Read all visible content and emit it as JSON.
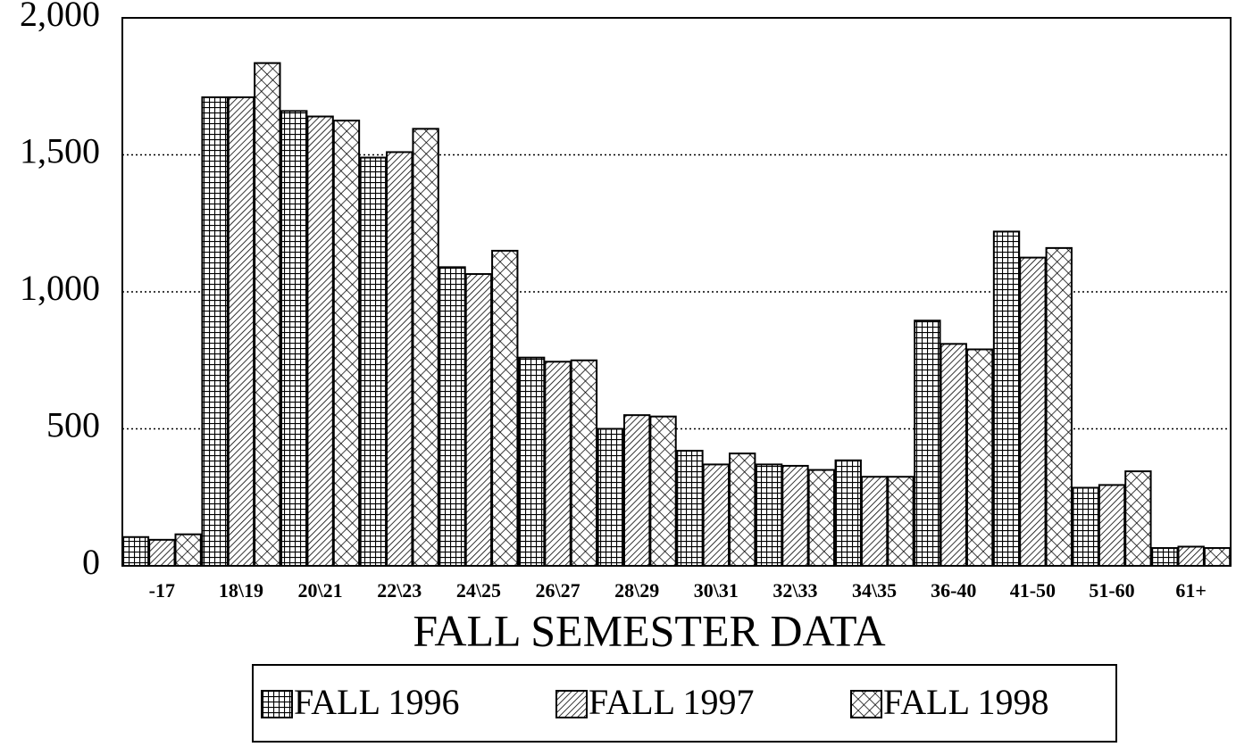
{
  "chart_data": {
    "type": "bar",
    "x_label": "FALL SEMESTER DATA",
    "categories": [
      "-17",
      "18\\19",
      "20\\21",
      "22\\23",
      "24\\25",
      "26\\27",
      "28\\29",
      "30\\31",
      "32\\33",
      "34\\35",
      "36-40",
      "41-50",
      "51-60",
      "61+"
    ],
    "series": [
      {
        "name": "FALL 1996",
        "color": "#000000",
        "pattern": "grid",
        "values": [
          105,
          1710,
          1660,
          1490,
          1090,
          760,
          500,
          420,
          370,
          385,
          895,
          1220,
          285,
          65
        ]
      },
      {
        "name": "FALL 1997",
        "color": "#000000",
        "pattern": "diagonal",
        "values": [
          95,
          1710,
          1640,
          1510,
          1065,
          745,
          550,
          370,
          365,
          325,
          810,
          1125,
          295,
          70
        ]
      },
      {
        "name": "FALL 1998",
        "color": "#000000",
        "pattern": "crosshatch",
        "values": [
          115,
          1835,
          1625,
          1595,
          1150,
          750,
          545,
          410,
          350,
          325,
          790,
          1160,
          345,
          65
        ]
      }
    ],
    "ylim": [
      0,
      2000
    ],
    "yticks": [
      0,
      500,
      {
        "value": 1000,
        "label": "1,000"
      },
      {
        "value": 1500,
        "label": "1,500"
      },
      {
        "value": 2000,
        "label": "2,000"
      }
    ],
    "grid": true,
    "legend": "bottom"
  }
}
